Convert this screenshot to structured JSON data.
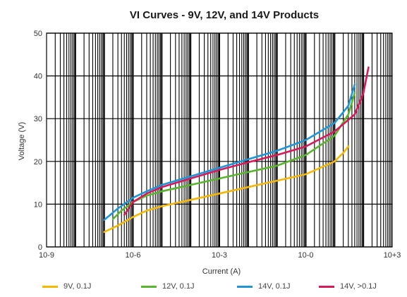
{
  "chart_data": {
    "type": "line",
    "title": "VI Curves - 9V, 12V, and 14V Products",
    "xlabel": "Current (A)",
    "ylabel": "Voltage (V)",
    "x_scale": "log",
    "xlim": [
      "1e-9",
      "1e+3"
    ],
    "ylim": [
      0,
      50
    ],
    "grid": true,
    "x_ticks": [
      {
        "label": "10-9",
        "value": 1e-09
      },
      {
        "label": "10-6",
        "value": 1e-06
      },
      {
        "label": "10-3",
        "value": 0.001
      },
      {
        "label": "10-0",
        "value": 1
      },
      {
        "label": "10+3",
        "value": 1000
      }
    ],
    "y_ticks": [
      0,
      10,
      20,
      30,
      40,
      50
    ],
    "legend_position": "bottom",
    "series": [
      {
        "name": "9V, 0.1J",
        "color": "#f5b800",
        "points": [
          [
            1e-07,
            3.5
          ],
          [
            3e-07,
            5
          ],
          [
            1e-06,
            7
          ],
          [
            3e-06,
            8.5
          ],
          [
            1e-05,
            9.5
          ],
          [
            0.0001,
            11
          ],
          [
            0.001,
            12.5
          ],
          [
            0.01,
            14
          ],
          [
            0.1,
            15.5
          ],
          [
            1,
            17
          ],
          [
            10,
            20
          ],
          [
            20,
            22
          ],
          [
            30,
            23.5
          ]
        ]
      },
      {
        "name": "12V, 0.1J",
        "color": "#5ab52e",
        "points": [
          [
            2e-07,
            6.5
          ],
          [
            4e-07,
            8.5
          ],
          [
            1e-06,
            10.5
          ],
          [
            3e-06,
            12
          ],
          [
            1e-05,
            13
          ],
          [
            0.0001,
            14.5
          ],
          [
            0.001,
            16
          ],
          [
            0.01,
            17.5
          ],
          [
            0.1,
            19
          ],
          [
            1,
            21.5
          ],
          [
            10,
            26
          ],
          [
            30,
            31
          ],
          [
            50,
            36
          ]
        ]
      },
      {
        "name": "14V, 0.1J",
        "color": "#1e96d8",
        "points": [
          [
            1e-07,
            6.3
          ],
          [
            3e-07,
            9
          ],
          [
            1e-06,
            11.5
          ],
          [
            3e-06,
            13
          ],
          [
            1e-05,
            14.5
          ],
          [
            0.0001,
            16.5
          ],
          [
            0.001,
            18.5
          ],
          [
            0.01,
            20.5
          ],
          [
            0.1,
            22.5
          ],
          [
            1,
            25
          ],
          [
            10,
            29
          ],
          [
            30,
            33
          ],
          [
            50,
            38
          ]
        ]
      },
      {
        "name": "14V, >0.1J",
        "color": "#d81a5a",
        "points": [
          [
            5e-07,
            7.5
          ],
          [
            1e-06,
            10.5
          ],
          [
            3e-06,
            12.5
          ],
          [
            1e-05,
            14
          ],
          [
            0.0001,
            16
          ],
          [
            0.001,
            18
          ],
          [
            0.01,
            19.8
          ],
          [
            0.1,
            21.5
          ],
          [
            1,
            23.5
          ],
          [
            10,
            27
          ],
          [
            50,
            31
          ],
          [
            100,
            36
          ],
          [
            150,
            42
          ]
        ]
      }
    ]
  }
}
